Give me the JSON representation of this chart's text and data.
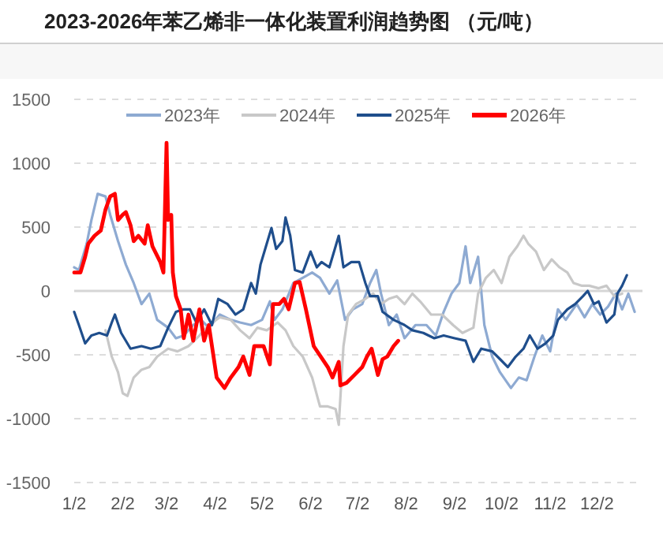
{
  "chart_data": {
    "type": "line",
    "title": "2023-2026年苯乙烯非一体化装置利润趋势图 （元/吨）",
    "xlim": [
      "--01-02",
      "--12-31"
    ],
    "xticks": [
      {
        "value": "--01-02",
        "label": "1/2"
      },
      {
        "value": "--02-02",
        "label": "2/2"
      },
      {
        "value": "--03-02",
        "label": "3/2"
      },
      {
        "value": "--04-02",
        "label": "4/2"
      },
      {
        "value": "--05-02",
        "label": "5/2"
      },
      {
        "value": "--06-02",
        "label": "6/2"
      },
      {
        "value": "--07-02",
        "label": "7/2"
      },
      {
        "value": "--08-02",
        "label": "8/2"
      },
      {
        "value": "--09-02",
        "label": "9/2"
      },
      {
        "value": "--10-02",
        "label": "10/2"
      },
      {
        "value": "--11-02",
        "label": "11/2"
      },
      {
        "value": "--12-02",
        "label": "12/2"
      }
    ],
    "ylim": [
      -1500,
      1500
    ],
    "yticks": [
      -1500,
      -1000,
      -500,
      0,
      500,
      1000,
      1500
    ],
    "grid": "y",
    "legend": "top",
    "marker": "none",
    "line_style": "solid",
    "series": [
      {
        "name": "2023年",
        "color": "#8eaad2",
        "x": [
          "--01-02",
          "--01-05",
          "--01-10",
          "--01-13",
          "--01-17",
          "--01-22",
          "--01-25",
          "--01-30",
          "--02-04",
          "--02-09",
          "--02-14",
          "--02-19",
          "--02-24",
          "--03-03",
          "--03-08",
          "--03-13",
          "--03-19",
          "--03-24",
          "--03-29",
          "--04-05",
          "--04-12",
          "--04-18",
          "--04-25",
          "--05-02",
          "--05-07",
          "--05-10",
          "--05-15",
          "--05-22",
          "--05-28",
          "--06-03",
          "--06-08",
          "--06-14",
          "--06-19",
          "--06-24",
          "--06-29",
          "--07-05",
          "--07-10",
          "--07-14",
          "--07-17",
          "--07-22",
          "--07-27",
          "--08-01",
          "--08-08",
          "--08-15",
          "--08-21",
          "--08-26",
          "--08-31",
          "--09-05",
          "--09-09",
          "--09-12",
          "--09-17",
          "--09-21",
          "--09-26",
          "--10-01",
          "--10-08",
          "--10-13",
          "--10-18",
          "--10-23",
          "--10-28",
          "--11-02",
          "--11-07",
          "--11-12",
          "--11-19",
          "--11-24",
          "--11-29",
          "--12-04",
          "--12-09",
          "--12-14",
          "--12-18",
          "--12-22",
          "--12-26"
        ],
        "values": [
          185,
          164,
          370,
          555,
          760,
          740,
          596,
          390,
          206,
          62,
          -103,
          -21,
          -226,
          -288,
          -370,
          -349,
          -267,
          -226,
          -288,
          -185,
          -226,
          -247,
          -267,
          -226,
          -82,
          -226,
          -144,
          62,
          103,
          144,
          103,
          -21,
          82,
          -226,
          -144,
          -103,
          62,
          164,
          -21,
          -267,
          -185,
          -370,
          -267,
          -267,
          -349,
          -164,
          -21,
          62,
          349,
          62,
          267,
          -267,
          -514,
          -637,
          -760,
          -678,
          -699,
          -514,
          -349,
          -473,
          -144,
          -226,
          -103,
          -206,
          -103,
          -185,
          -123,
          -21,
          -144,
          -21,
          -164
        ]
      },
      {
        "name": "2024年",
        "color": "#c8c8c8",
        "x": [
          "--01-22",
          "--01-26",
          "--01-30",
          "--02-02",
          "--02-05",
          "--02-09",
          "--02-14",
          "--02-19",
          "--02-24",
          "--03-03",
          "--03-09",
          "--03-16",
          "--03-23",
          "--03-29",
          "--04-05",
          "--04-12",
          "--04-18",
          "--04-24",
          "--04-29",
          "--05-05",
          "--05-12",
          "--05-17",
          "--05-22",
          "--05-28",
          "--06-03",
          "--06-08",
          "--06-13",
          "--06-18",
          "--06-20",
          "--06-23",
          "--06-26",
          "--07-01",
          "--07-07",
          "--07-12",
          "--07-17",
          "--07-22",
          "--07-27",
          "--08-01",
          "--08-06",
          "--08-11",
          "--08-18",
          "--08-25",
          "--09-01",
          "--09-07",
          "--09-14",
          "--09-17",
          "--09-22",
          "--09-27",
          "--10-02",
          "--10-07",
          "--10-12",
          "--10-16",
          "--10-19",
          "--10-24",
          "--10-29",
          "--11-03",
          "--11-08",
          "--11-13",
          "--11-17",
          "--11-22",
          "--11-27",
          "--12-03",
          "--12-08",
          "--12-13",
          "--12-18"
        ],
        "values": [
          -308,
          -514,
          -637,
          -801,
          -822,
          -678,
          -617,
          -596,
          -514,
          -452,
          -473,
          -432,
          -349,
          -267,
          -206,
          -226,
          -308,
          -370,
          -288,
          -308,
          -247,
          -308,
          -432,
          -514,
          -678,
          -904,
          -904,
          -925,
          -1048,
          -432,
          -185,
          -103,
          -62,
          -21,
          -103,
          -62,
          -41,
          -103,
          -21,
          -82,
          -185,
          -185,
          -267,
          -329,
          -288,
          -21,
          103,
          164,
          62,
          267,
          349,
          432,
          370,
          308,
          164,
          247,
          185,
          144,
          62,
          41,
          41,
          21,
          41,
          -41,
          -21
        ]
      },
      {
        "name": "2025年",
        "color": "#1f4e8c",
        "x": [
          "--01-02",
          "--01-05",
          "--01-09",
          "--01-13",
          "--01-18",
          "--01-23",
          "--01-26",
          "--01-28",
          "--02-01",
          "--02-07",
          "--02-14",
          "--02-20",
          "--02-26",
          "--03-03",
          "--03-08",
          "--03-13",
          "--03-17",
          "--03-21",
          "--03-26",
          "--03-31",
          "--04-04",
          "--04-10",
          "--04-15",
          "--04-20",
          "--04-25",
          "--04-28",
          "--05-01",
          "--05-04",
          "--05-08",
          "--05-11",
          "--05-15",
          "--05-17",
          "--05-20",
          "--05-23",
          "--05-28",
          "--06-02",
          "--06-06",
          "--06-09",
          "--06-14",
          "--06-20",
          "--06-23",
          "--06-28",
          "--07-03",
          "--07-07",
          "--07-10",
          "--07-15",
          "--07-18",
          "--07-25",
          "--08-01",
          "--08-06",
          "--08-13",
          "--08-20",
          "--08-26",
          "--09-02",
          "--09-09",
          "--09-14",
          "--09-19",
          "--09-26",
          "--10-01",
          "--10-06",
          "--10-11",
          "--10-16",
          "--10-20",
          "--10-25",
          "--10-30",
          "--11-04",
          "--11-07",
          "--11-13",
          "--11-18",
          "--11-23",
          "--11-26",
          "--11-30",
          "--12-03",
          "--12-08",
          "--12-13",
          "--12-15",
          "--12-18",
          "--12-21"
        ],
        "values": [
          -164,
          -267,
          -411,
          -349,
          -329,
          -349,
          -247,
          -185,
          -329,
          -452,
          -432,
          -452,
          -432,
          -288,
          -164,
          -144,
          -144,
          -247,
          -144,
          -267,
          -62,
          -103,
          -185,
          -144,
          62,
          -21,
          206,
          329,
          493,
          329,
          390,
          575,
          432,
          164,
          144,
          308,
          185,
          226,
          185,
          432,
          185,
          226,
          226,
          62,
          -41,
          -41,
          -164,
          -226,
          -267,
          -308,
          -329,
          -370,
          -349,
          -370,
          -390,
          -555,
          -452,
          -473,
          -534,
          -596,
          -514,
          -452,
          -349,
          -452,
          -411,
          -349,
          -226,
          -144,
          -103,
          -41,
          0,
          -103,
          -82,
          -247,
          -185,
          -21,
          41,
          123
        ]
      },
      {
        "name": "2026年",
        "color": "#ff0000",
        "x": [
          "--01-02",
          "--01-06",
          "--01-09",
          "--01-11",
          "--01-15",
          "--01-19",
          "--01-22",
          "--01-25",
          "--01-28",
          "--01-30",
          "--02-02",
          "--02-04",
          "--02-07",
          "--02-09",
          "--02-12",
          "--02-16",
          "--02-18",
          "--02-21",
          "--02-26",
          "--02-28",
          "--03-02",
          "--03-03",
          "--03-05",
          "--03-06",
          "--03-08",
          "--03-11",
          "--03-13",
          "--03-16",
          "--03-19",
          "--03-23",
          "--03-26",
          "--03-29",
          "--04-03",
          "--04-08",
          "--04-12",
          "--04-17",
          "--04-20",
          "--04-24",
          "--04-27",
          "--05-03",
          "--05-07",
          "--05-09",
          "--05-13",
          "--05-16",
          "--05-19",
          "--05-23",
          "--05-26",
          "--05-30",
          "--06-04",
          "--06-13",
          "--06-16",
          "--06-20",
          "--06-21",
          "--06-25",
          "--06-30",
          "--07-05",
          "--07-08",
          "--07-11",
          "--07-15",
          "--07-18",
          "--07-21",
          "--07-25",
          "--07-28"
        ],
        "values": [
          144,
          144,
          267,
          370,
          432,
          473,
          637,
          740,
          760,
          555,
          596,
          617,
          514,
          390,
          432,
          370,
          514,
          349,
          226,
          144,
          1160,
          555,
          596,
          144,
          -41,
          -144,
          -370,
          -185,
          -390,
          -144,
          -390,
          -267,
          -678,
          -760,
          -678,
          -596,
          -514,
          -658,
          -432,
          -432,
          -575,
          -103,
          -103,
          -62,
          -144,
          62,
          70,
          -144,
          -432,
          -596,
          -678,
          -555,
          -740,
          -719,
          -658,
          -596,
          -514,
          -452,
          -658,
          -534,
          -514,
          -432,
          -390
        ]
      }
    ]
  }
}
